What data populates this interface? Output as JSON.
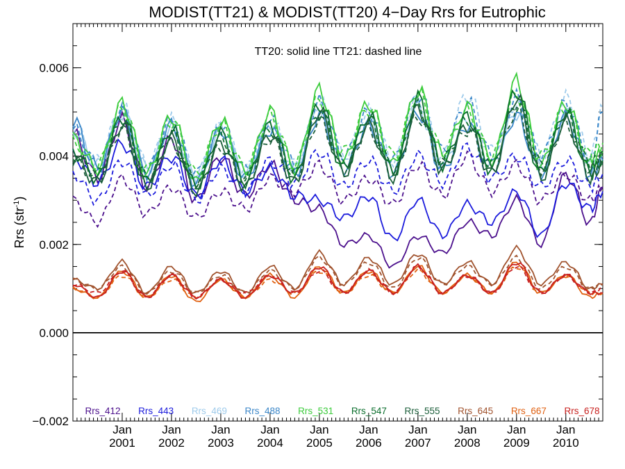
{
  "chart_data": {
    "type": "line",
    "title": "MODIST(TT21) & MODIST(TT20) 4−Day Rrs for Eutrophic",
    "annotation": "TT20: solid line   TT21: dashed line",
    "ylabel_main": "Rrs (str",
    "ylabel_sup": "-1",
    "ylabel_close": ")",
    "ylim": [
      -0.002,
      0.007
    ],
    "xlim": [
      2000.0,
      2010.75
    ],
    "yticks": [
      -0.002,
      0.0,
      0.002,
      0.004,
      0.006
    ],
    "ytick_labels": [
      "−0.002",
      "0.000",
      "0.002",
      "0.004",
      "0.006"
    ],
    "xticks": [
      {
        "x": 2001,
        "month": "Jan",
        "year": "2001"
      },
      {
        "x": 2002,
        "month": "Jan",
        "year": "2002"
      },
      {
        "x": 2003,
        "month": "Jan",
        "year": "2003"
      },
      {
        "x": 2004,
        "month": "Jan",
        "year": "2004"
      },
      {
        "x": 2005,
        "month": "Jan",
        "year": "2005"
      },
      {
        "x": 2006,
        "month": "Jan",
        "year": "2006"
      },
      {
        "x": 2007,
        "month": "Jan",
        "year": "2007"
      },
      {
        "x": 2008,
        "month": "Jan",
        "year": "2008"
      },
      {
        "x": 2009,
        "month": "Jan",
        "year": "2009"
      },
      {
        "x": 2010,
        "month": "Jan",
        "year": "2010"
      }
    ],
    "zero_line": 0.0,
    "grid": false,
    "legend_position": "bottom",
    "x": [
      2000.0,
      2000.5,
      2001.0,
      2001.5,
      2002.0,
      2002.5,
      2003.0,
      2003.5,
      2004.0,
      2004.5,
      2005.0,
      2005.5,
      2006.0,
      2006.5,
      2007.0,
      2007.5,
      2008.0,
      2008.5,
      2009.0,
      2009.5,
      2010.0,
      2010.5,
      2010.75
    ],
    "series": [
      {
        "name": "Rrs_412",
        "color": "#4b0f8c",
        "style": "solid",
        "values": [
          0.0045,
          0.0035,
          0.0048,
          0.0033,
          0.0044,
          0.003,
          0.004,
          0.0031,
          0.0038,
          0.003,
          0.0028,
          0.002,
          0.0022,
          0.0015,
          0.0022,
          0.0018,
          0.0025,
          0.0022,
          0.003,
          0.002,
          0.0036,
          0.0025,
          0.0033
        ]
      },
      {
        "name": "Rrs_412",
        "color": "#4b0f8c",
        "style": "dashed",
        "values": [
          0.003,
          0.0025,
          0.0035,
          0.0027,
          0.0033,
          0.0026,
          0.0032,
          0.0028,
          0.0035,
          0.0032,
          0.0038,
          0.003,
          0.0035,
          0.0029,
          0.0038,
          0.0031,
          0.004,
          0.0032,
          0.0038,
          0.003,
          0.0036,
          0.003,
          0.0033
        ]
      },
      {
        "name": "Rrs_443",
        "color": "#1a1adc",
        "style": "solid",
        "values": [
          0.004,
          0.0034,
          0.0043,
          0.0033,
          0.004,
          0.0031,
          0.0039,
          0.0032,
          0.0037,
          0.0031,
          0.003,
          0.0026,
          0.0031,
          0.0021,
          0.003,
          0.0022,
          0.0029,
          0.0025,
          0.0032,
          0.0022,
          0.0034,
          0.0028,
          0.0032
        ]
      },
      {
        "name": "Rrs_443",
        "color": "#1a1adc",
        "style": "dashed",
        "values": [
          0.0036,
          0.003,
          0.0039,
          0.0031,
          0.0038,
          0.003,
          0.0037,
          0.0032,
          0.0039,
          0.0034,
          0.0041,
          0.0033,
          0.0039,
          0.0032,
          0.004,
          0.0034,
          0.0042,
          0.0035,
          0.004,
          0.0033,
          0.0039,
          0.0033,
          0.0036
        ]
      },
      {
        "name": "Rrs_469",
        "color": "#9ecbeb",
        "style": "solid",
        "values": [
          0.0046,
          0.0038,
          0.005,
          0.0037,
          0.0047,
          0.0035,
          0.0046,
          0.0036,
          0.0047,
          0.0037,
          0.005,
          0.0038,
          0.0048,
          0.0037,
          0.0051,
          0.0038,
          0.0048,
          0.0038,
          0.005,
          0.0037,
          0.005,
          0.0037,
          0.004
        ]
      },
      {
        "name": "Rrs_469",
        "color": "#9ecbeb",
        "style": "dashed",
        "values": [
          0.0047,
          0.0039,
          0.0051,
          0.0038,
          0.0048,
          0.0036,
          0.0047,
          0.0037,
          0.0048,
          0.0038,
          0.0052,
          0.004,
          0.005,
          0.0039,
          0.0053,
          0.004,
          0.0054,
          0.0041,
          0.0052,
          0.004,
          0.0053,
          0.004,
          0.0051
        ]
      },
      {
        "name": "Rrs_488",
        "color": "#3a86c8",
        "style": "solid",
        "values": [
          0.0048,
          0.0037,
          0.005,
          0.0036,
          0.0047,
          0.0034,
          0.0046,
          0.0035,
          0.0046,
          0.0036,
          0.0049,
          0.0037,
          0.0047,
          0.0036,
          0.005,
          0.0037,
          0.0047,
          0.0037,
          0.0049,
          0.0036,
          0.0049,
          0.0036,
          0.0039
        ]
      },
      {
        "name": "Rrs_488",
        "color": "#3a86c8",
        "style": "dashed",
        "values": [
          0.0046,
          0.0038,
          0.005,
          0.0037,
          0.0048,
          0.0036,
          0.0047,
          0.0037,
          0.0048,
          0.0038,
          0.0052,
          0.004,
          0.005,
          0.0039,
          0.0054,
          0.0041,
          0.0052,
          0.004,
          0.0053,
          0.004,
          0.0052,
          0.0039,
          0.005
        ]
      },
      {
        "name": "Rrs_531",
        "color": "#3ccc3c",
        "style": "solid",
        "values": [
          0.0044,
          0.0037,
          0.0052,
          0.0036,
          0.0049,
          0.0034,
          0.0048,
          0.0036,
          0.005,
          0.0037,
          0.0055,
          0.0039,
          0.0052,
          0.0038,
          0.0055,
          0.004,
          0.0051,
          0.0039,
          0.0057,
          0.0038,
          0.0052,
          0.0038,
          0.0041
        ]
      },
      {
        "name": "Rrs_531",
        "color": "#3ccc3c",
        "style": "dashed",
        "values": [
          0.0043,
          0.0038,
          0.0051,
          0.0037,
          0.0048,
          0.0036,
          0.0047,
          0.0037,
          0.0049,
          0.0038,
          0.0053,
          0.0041,
          0.0051,
          0.004,
          0.0054,
          0.0041,
          0.005,
          0.004,
          0.0054,
          0.004,
          0.0051,
          0.004,
          0.0043
        ]
      },
      {
        "name": "Rrs_547",
        "color": "#0a6e2c",
        "style": "solid",
        "values": [
          0.0041,
          0.0035,
          0.0049,
          0.0034,
          0.0046,
          0.0033,
          0.0045,
          0.0034,
          0.0047,
          0.0035,
          0.0052,
          0.0037,
          0.0049,
          0.0036,
          0.0053,
          0.0038,
          0.0049,
          0.0037,
          0.0055,
          0.0036,
          0.005,
          0.0036,
          0.0039
        ]
      },
      {
        "name": "Rrs_547",
        "color": "#0a6e2c",
        "style": "dashed",
        "values": [
          0.004,
          0.0036,
          0.0048,
          0.0035,
          0.0045,
          0.0034,
          0.0044,
          0.0035,
          0.0046,
          0.0036,
          0.005,
          0.0038,
          0.0048,
          0.0037,
          0.0051,
          0.0039,
          0.0048,
          0.0038,
          0.0052,
          0.0038,
          0.0049,
          0.0038,
          0.0041
        ]
      },
      {
        "name": "Rrs_555",
        "color": "#1b5e3a",
        "style": "solid",
        "values": [
          0.004,
          0.0034,
          0.0047,
          0.0033,
          0.0044,
          0.0032,
          0.0043,
          0.0033,
          0.0045,
          0.0034,
          0.005,
          0.0036,
          0.0047,
          0.0035,
          0.0051,
          0.0037,
          0.0047,
          0.0036,
          0.0053,
          0.0035,
          0.0048,
          0.0035,
          0.0038
        ]
      },
      {
        "name": "Rrs_555",
        "color": "#1b5e3a",
        "style": "dashed",
        "values": [
          0.0039,
          0.0035,
          0.0046,
          0.0034,
          0.0043,
          0.0033,
          0.0042,
          0.0034,
          0.0044,
          0.0035,
          0.0048,
          0.0037,
          0.0046,
          0.0036,
          0.0049,
          0.0038,
          0.0046,
          0.0037,
          0.005,
          0.0037,
          0.0047,
          0.0037,
          0.004
        ]
      },
      {
        "name": "Rrs_645",
        "color": "#a0522d",
        "style": "solid",
        "values": [
          0.0012,
          0.001,
          0.0016,
          0.0009,
          0.0015,
          0.0009,
          0.0014,
          0.0009,
          0.0015,
          0.001,
          0.0018,
          0.0011,
          0.0017,
          0.0011,
          0.0018,
          0.0011,
          0.0016,
          0.0011,
          0.0019,
          0.0011,
          0.0016,
          0.001,
          0.0011
        ]
      },
      {
        "name": "Rrs_645",
        "color": "#a0522d",
        "style": "dashed",
        "values": [
          0.0012,
          0.001,
          0.0015,
          0.0009,
          0.0014,
          0.0009,
          0.0013,
          0.0009,
          0.0014,
          0.001,
          0.0017,
          0.0011,
          0.0016,
          0.001,
          0.0017,
          0.0011,
          0.0015,
          0.0011,
          0.0017,
          0.001,
          0.0015,
          0.001,
          0.0011
        ]
      },
      {
        "name": "Rrs_667",
        "color": "#e06010",
        "style": "solid",
        "values": [
          0.001,
          0.0008,
          0.0014,
          0.0008,
          0.0013,
          0.0007,
          0.0012,
          0.0008,
          0.0013,
          0.0008,
          0.0015,
          0.0009,
          0.0014,
          0.0009,
          0.0015,
          0.0009,
          0.0013,
          0.0009,
          0.0016,
          0.0009,
          0.0013,
          0.0008,
          0.0009
        ]
      },
      {
        "name": "Rrs_667",
        "color": "#e06010",
        "style": "dashed",
        "values": [
          0.001,
          0.0008,
          0.0013,
          0.0008,
          0.0012,
          0.0008,
          0.0012,
          0.0008,
          0.0012,
          0.0009,
          0.0014,
          0.0009,
          0.0013,
          0.0009,
          0.0014,
          0.0009,
          0.0013,
          0.0009,
          0.0015,
          0.0009,
          0.0013,
          0.0009,
          0.0009
        ]
      },
      {
        "name": "Rrs_678",
        "color": "#c8201e",
        "style": "solid",
        "values": [
          0.0011,
          0.0008,
          0.0014,
          0.0008,
          0.0013,
          0.0008,
          0.0012,
          0.0008,
          0.0013,
          0.0009,
          0.0015,
          0.0009,
          0.0014,
          0.0009,
          0.0015,
          0.0009,
          0.0013,
          0.0009,
          0.0016,
          0.0009,
          0.0013,
          0.0009,
          0.0009
        ]
      },
      {
        "name": "Rrs_678",
        "color": "#c8201e",
        "style": "dashed",
        "values": [
          0.0011,
          0.0009,
          0.0014,
          0.0008,
          0.0013,
          0.0008,
          0.0012,
          0.0009,
          0.0013,
          0.0009,
          0.0014,
          0.0009,
          0.0014,
          0.0009,
          0.0015,
          0.0009,
          0.0013,
          0.0009,
          0.0015,
          0.0009,
          0.0013,
          0.0009,
          0.001
        ]
      }
    ],
    "legend": [
      {
        "label": "Rrs_412",
        "color": "#4b0f8c"
      },
      {
        "label": "Rrs_443",
        "color": "#1a1adc"
      },
      {
        "label": "Rrs_469",
        "color": "#9ecbeb"
      },
      {
        "label": "Rrs_488",
        "color": "#3a86c8"
      },
      {
        "label": "Rrs_531",
        "color": "#3ccc3c"
      },
      {
        "label": "Rrs_547",
        "color": "#0a6e2c"
      },
      {
        "label": "Rrs_555",
        "color": "#1b5e3a"
      },
      {
        "label": "Rrs_645",
        "color": "#a0522d"
      },
      {
        "label": "Rrs_667",
        "color": "#e06010"
      },
      {
        "label": "Rrs_678",
        "color": "#c8201e"
      }
    ]
  }
}
